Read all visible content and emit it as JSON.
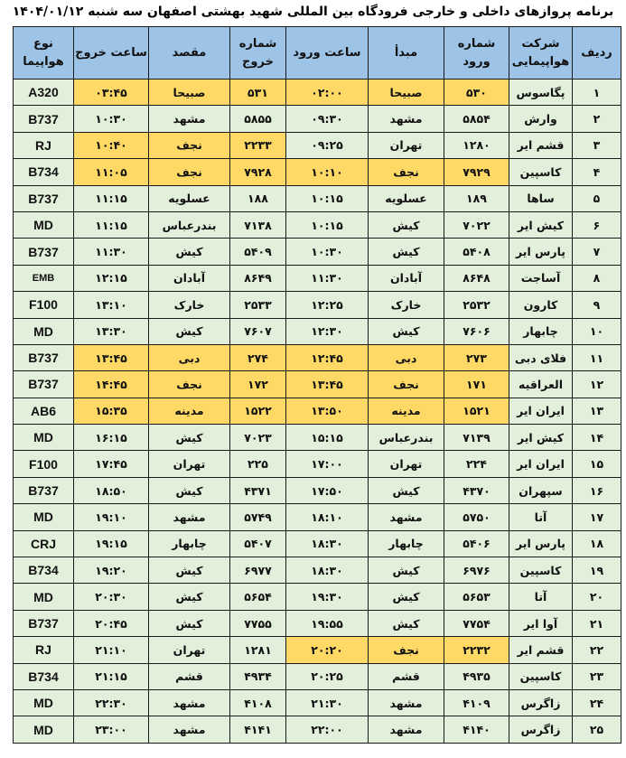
{
  "title": "برنامه پروازهای داخلی و خارجی فرودگاه بین المللی شهید بهشتی اصفهان سه شنبه ۱۴۰۴/۰۱/۱۲",
  "colors": {
    "header": "#9DC3E6",
    "row": "#E2EFDA",
    "highlight": "#FFD966"
  },
  "columns": [
    "ردیف",
    "شرکت هواپیمایی",
    "شماره ورود",
    "مبدأ",
    "ساعت ورود",
    "شماره خروج",
    "مقصد",
    "ساعت خروج",
    "نوع هواپیما"
  ],
  "rows": [
    {
      "row": "۱",
      "airline": "پگاسوس",
      "arr_no": "۵۳۰",
      "origin": "صبیحا",
      "arr_time": "۰۲:۰۰",
      "dep_no": "۵۳۱",
      "dest": "صبیحا",
      "dep_time": "۰۳:۴۵",
      "type": "A320",
      "hl_arr": true,
      "hl_dep": true
    },
    {
      "row": "۲",
      "airline": "وارش",
      "arr_no": "۵۸۵۴",
      "origin": "مشهد",
      "arr_time": "۰۹:۳۰",
      "dep_no": "۵۸۵۵",
      "dest": "مشهد",
      "dep_time": "۱۰:۳۰",
      "type": "B737",
      "hl_arr": false,
      "hl_dep": false
    },
    {
      "row": "۳",
      "airline": "قشم ایر",
      "arr_no": "۱۲۸۰",
      "origin": "تهران",
      "arr_time": "۰۹:۲۵",
      "dep_no": "۲۲۳۳",
      "dest": "نجف",
      "dep_time": "۱۰:۴۰",
      "type": "RJ",
      "hl_arr": false,
      "hl_dep": true
    },
    {
      "row": "۴",
      "airline": "کاسپین",
      "arr_no": "۷۹۲۹",
      "origin": "نجف",
      "arr_time": "۱۰:۱۰",
      "dep_no": "۷۹۲۸",
      "dest": "نجف",
      "dep_time": "۱۱:۰۵",
      "type": "B734",
      "hl_arr": true,
      "hl_dep": true
    },
    {
      "row": "۵",
      "airline": "ساها",
      "arr_no": "۱۸۹",
      "origin": "عسلویه",
      "arr_time": "۱۰:۱۵",
      "dep_no": "۱۸۸",
      "dest": "عسلویه",
      "dep_time": "۱۱:۱۵",
      "type": "B737",
      "hl_arr": false,
      "hl_dep": false
    },
    {
      "row": "۶",
      "airline": "کیش ایر",
      "arr_no": "۷۰۲۲",
      "origin": "کیش",
      "arr_time": "۱۰:۱۵",
      "dep_no": "۷۱۳۸",
      "dest": "بندرعباس",
      "dep_time": "۱۱:۱۵",
      "type": "MD",
      "hl_arr": false,
      "hl_dep": false
    },
    {
      "row": "۷",
      "airline": "پارس ایر",
      "arr_no": "۵۴۰۸",
      "origin": "کیش",
      "arr_time": "۱۰:۳۰",
      "dep_no": "۵۴۰۹",
      "dest": "کیش",
      "dep_time": "۱۱:۳۰",
      "type": "B737",
      "hl_arr": false,
      "hl_dep": false
    },
    {
      "row": "۸",
      "airline": "آساجت",
      "arr_no": "۸۶۴۸",
      "origin": "آبادان",
      "arr_time": "۱۱:۳۰",
      "dep_no": "۸۶۴۹",
      "dest": "آبادان",
      "dep_time": "۱۲:۱۵",
      "type": "EMB",
      "hl_arr": false,
      "hl_dep": false
    },
    {
      "row": "۹",
      "airline": "کارون",
      "arr_no": "۲۵۳۲",
      "origin": "خارک",
      "arr_time": "۱۲:۲۵",
      "dep_no": "۲۵۳۳",
      "dest": "خارک",
      "dep_time": "۱۳:۱۰",
      "type": "F100",
      "hl_arr": false,
      "hl_dep": false
    },
    {
      "row": "۱۰",
      "airline": "چابهار",
      "arr_no": "۷۶۰۶",
      "origin": "کیش",
      "arr_time": "۱۲:۳۰",
      "dep_no": "۷۶۰۷",
      "dest": "کیش",
      "dep_time": "۱۳:۳۰",
      "type": "MD",
      "hl_arr": false,
      "hl_dep": false
    },
    {
      "row": "۱۱",
      "airline": "فلای دبی",
      "arr_no": "۲۷۳",
      "origin": "دبی",
      "arr_time": "۱۲:۴۵",
      "dep_no": "۲۷۴",
      "dest": "دبی",
      "dep_time": "۱۳:۴۵",
      "type": "B737",
      "hl_arr": true,
      "hl_dep": true
    },
    {
      "row": "۱۲",
      "airline": "العراقیه",
      "arr_no": "۱۷۱",
      "origin": "نجف",
      "arr_time": "۱۳:۴۵",
      "dep_no": "۱۷۲",
      "dest": "نجف",
      "dep_time": "۱۴:۴۵",
      "type": "B737",
      "hl_arr": true,
      "hl_dep": true
    },
    {
      "row": "۱۳",
      "airline": "ایران ایر",
      "arr_no": "۱۵۲۱",
      "origin": "مدینه",
      "arr_time": "۱۳:۵۰",
      "dep_no": "۱۵۲۲",
      "dest": "مدینه",
      "dep_time": "۱۵:۳۵",
      "type": "AB6",
      "hl_arr": true,
      "hl_dep": true
    },
    {
      "row": "۱۴",
      "airline": "کیش ایر",
      "arr_no": "۷۱۳۹",
      "origin": "بندرعباس",
      "arr_time": "۱۵:۱۵",
      "dep_no": "۷۰۲۳",
      "dest": "کیش",
      "dep_time": "۱۶:۱۵",
      "type": "MD",
      "hl_arr": false,
      "hl_dep": false
    },
    {
      "row": "۱۵",
      "airline": "ایران ایر",
      "arr_no": "۲۲۴",
      "origin": "تهران",
      "arr_time": "۱۷:۰۰",
      "dep_no": "۲۲۵",
      "dest": "تهران",
      "dep_time": "۱۷:۴۵",
      "type": "F100",
      "hl_arr": false,
      "hl_dep": false
    },
    {
      "row": "۱۶",
      "airline": "سپهران",
      "arr_no": "۴۳۷۰",
      "origin": "کیش",
      "arr_time": "۱۷:۵۰",
      "dep_no": "۴۳۷۱",
      "dest": "کیش",
      "dep_time": "۱۸:۵۰",
      "type": "B737",
      "hl_arr": false,
      "hl_dep": false
    },
    {
      "row": "۱۷",
      "airline": "آتا",
      "arr_no": "۵۷۵۰",
      "origin": "مشهد",
      "arr_time": "۱۸:۱۰",
      "dep_no": "۵۷۴۹",
      "dest": "مشهد",
      "dep_time": "۱۹:۱۰",
      "type": "MD",
      "hl_arr": false,
      "hl_dep": false
    },
    {
      "row": "۱۸",
      "airline": "پارس ایر",
      "arr_no": "۵۴۰۶",
      "origin": "چابهار",
      "arr_time": "۱۸:۳۰",
      "dep_no": "۵۴۰۷",
      "dest": "چابهار",
      "dep_time": "۱۹:۱۵",
      "type": "CRJ",
      "hl_arr": false,
      "hl_dep": false
    },
    {
      "row": "۱۹",
      "airline": "کاسپین",
      "arr_no": "۶۹۷۶",
      "origin": "کیش",
      "arr_time": "۱۸:۳۰",
      "dep_no": "۶۹۷۷",
      "dest": "کیش",
      "dep_time": "۱۹:۲۰",
      "type": "B734",
      "hl_arr": false,
      "hl_dep": false
    },
    {
      "row": "۲۰",
      "airline": "آتا",
      "arr_no": "۵۶۵۳",
      "origin": "کیش",
      "arr_time": "۱۹:۳۰",
      "dep_no": "۵۶۵۴",
      "dest": "کیش",
      "dep_time": "۲۰:۳۰",
      "type": "MD",
      "hl_arr": false,
      "hl_dep": false
    },
    {
      "row": "۲۱",
      "airline": "آوا ایر",
      "arr_no": "۷۷۵۴",
      "origin": "کیش",
      "arr_time": "۱۹:۵۵",
      "dep_no": "۷۷۵۵",
      "dest": "کیش",
      "dep_time": "۲۰:۴۵",
      "type": "B737",
      "hl_arr": false,
      "hl_dep": false
    },
    {
      "row": "۲۲",
      "airline": "قشم ایر",
      "arr_no": "۲۲۳۲",
      "origin": "نجف",
      "arr_time": "۲۰:۲۰",
      "dep_no": "۱۲۸۱",
      "dest": "تهران",
      "dep_time": "۲۱:۱۰",
      "type": "RJ",
      "hl_arr": true,
      "hl_dep": false
    },
    {
      "row": "۲۳",
      "airline": "کاسپین",
      "arr_no": "۴۹۳۵",
      "origin": "قشم",
      "arr_time": "۲۰:۲۵",
      "dep_no": "۴۹۳۴",
      "dest": "قشم",
      "dep_time": "۲۱:۱۵",
      "type": "B734",
      "hl_arr": false,
      "hl_dep": false
    },
    {
      "row": "۲۴",
      "airline": "زاگرس",
      "arr_no": "۴۱۰۹",
      "origin": "مشهد",
      "arr_time": "۲۱:۳۰",
      "dep_no": "۴۱۰۸",
      "dest": "مشهد",
      "dep_time": "۲۲:۳۰",
      "type": "MD",
      "hl_arr": false,
      "hl_dep": false
    },
    {
      "row": "۲۵",
      "airline": "زاگرس",
      "arr_no": "۴۱۴۰",
      "origin": "مشهد",
      "arr_time": "۲۲:۰۰",
      "dep_no": "۴۱۴۱",
      "dest": "مشهد",
      "dep_time": "۲۳:۰۰",
      "type": "MD",
      "hl_arr": false,
      "hl_dep": false
    }
  ]
}
